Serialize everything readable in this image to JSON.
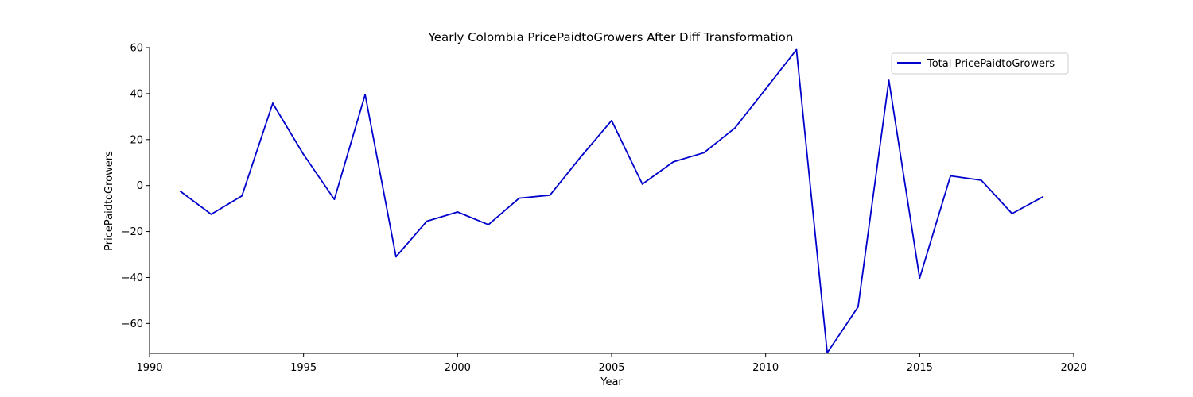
{
  "chart_data": {
    "type": "line",
    "title": "Yearly Colombia PricePaidtoGrowers After Diff Transformation",
    "xlabel": "Year",
    "ylabel": "PricePaidtoGrowers",
    "xlim": [
      1990,
      2020
    ],
    "ylim": [
      -73,
      60
    ],
    "xticks": [
      1990,
      1995,
      2000,
      2005,
      2010,
      2015,
      2020
    ],
    "yticks": [
      -60,
      -40,
      -20,
      0,
      20,
      40,
      60
    ],
    "grid": false,
    "legend_position": "top-right",
    "series": [
      {
        "name": "Total PricePaidtoGrowers",
        "color": "#0000cc",
        "x": [
          1991,
          1992,
          1993,
          1994,
          1995,
          1996,
          1997,
          1998,
          1999,
          2000,
          2001,
          2002,
          2003,
          2004,
          2005,
          2006,
          2007,
          2008,
          2009,
          2010,
          2011,
          2012,
          2013,
          2014,
          2015,
          2016,
          2017,
          2018,
          2019
        ],
        "y": [
          -2.5,
          -12.5,
          -4.5,
          35.8,
          13.5,
          -6.0,
          39.6,
          -31.0,
          -15.5,
          -11.5,
          -17.0,
          -5.5,
          -4.2,
          12.5,
          28.3,
          0.6,
          10.3,
          14.3,
          25.0,
          42.0,
          59.1,
          -72.8,
          -52.8,
          45.8,
          -40.3,
          4.2,
          2.3,
          -12.2,
          -4.9
        ]
      }
    ]
  }
}
